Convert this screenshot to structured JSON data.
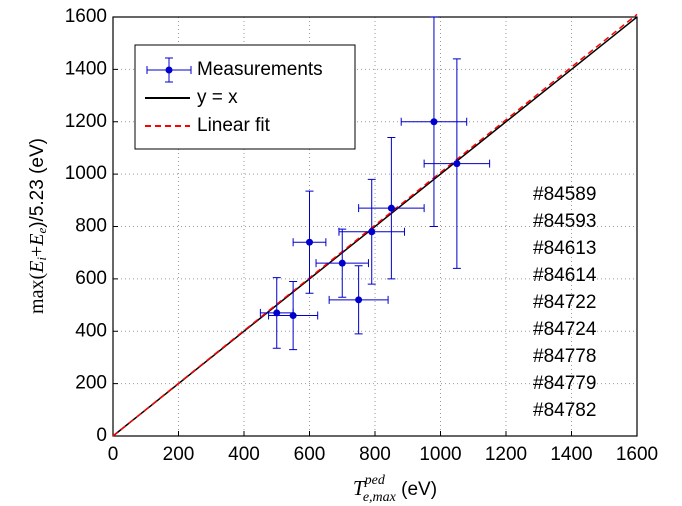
{
  "chart_data": {
    "type": "scatter",
    "x_label_parts": [
      "T",
      "ped",
      "e,max",
      " (eV)"
    ],
    "y_label_parts": [
      "max(",
      "E",
      "i",
      "+",
      "E",
      "e",
      ")/5.23 (eV)"
    ],
    "xlim": [
      0,
      1600
    ],
    "ylim": [
      0,
      1600
    ],
    "xticks": [
      0,
      200,
      400,
      600,
      800,
      1000,
      1200,
      1400,
      1600
    ],
    "yticks": [
      0,
      200,
      400,
      600,
      800,
      1000,
      1200,
      1400,
      1600
    ],
    "grid": true,
    "series": [
      {
        "name": "Measurements",
        "color": "#0000cc",
        "x": [
          500,
          550,
          600,
          700,
          750,
          790,
          850,
          980,
          1050
        ],
        "values": [
          470,
          460,
          740,
          660,
          520,
          780,
          870,
          1200,
          1040
        ],
        "xerr": [
          50,
          75,
          50,
          80,
          90,
          100,
          100,
          100,
          100
        ],
        "yerr": [
          135,
          130,
          195,
          130,
          130,
          200,
          270,
          400,
          400
        ]
      },
      {
        "name": "y = x",
        "color": "#000000",
        "style": "solid",
        "x": [
          0,
          1600
        ],
        "values": [
          0,
          1600
        ]
      },
      {
        "name": "Linear fit",
        "color": "#ff0000",
        "style": "dashed",
        "x": [
          0,
          1600
        ],
        "values": [
          0,
          1610
        ]
      }
    ],
    "annotations": [
      "#84589",
      "#84593",
      "#84613",
      "#84614",
      "#84722",
      "#84724",
      "#84778",
      "#84779",
      "#84782"
    ]
  }
}
